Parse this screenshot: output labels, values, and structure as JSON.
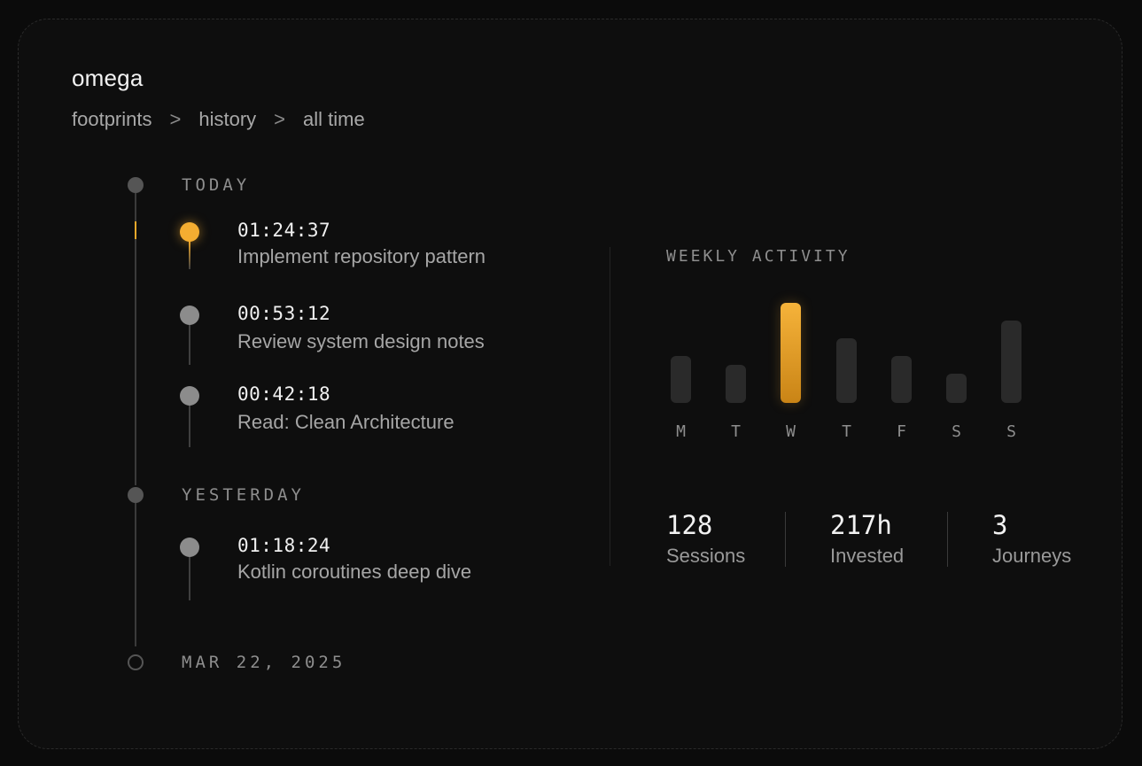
{
  "app": {
    "title": "omega"
  },
  "breadcrumb": {
    "items": [
      "footprints",
      "history",
      "all time"
    ],
    "separator": ">"
  },
  "timeline": {
    "groups": [
      {
        "label": "TODAY",
        "entries": [
          {
            "time": "01:24:37",
            "title": "Implement repository pattern",
            "active": true
          },
          {
            "time": "00:53:12",
            "title": "Review system design notes",
            "active": false
          },
          {
            "time": "00:42:18",
            "title": "Read: Clean Architecture",
            "active": false
          }
        ]
      },
      {
        "label": "YESTERDAY",
        "entries": [
          {
            "time": "01:18:24",
            "title": "Kotlin coroutines deep dive",
            "active": false
          }
        ]
      },
      {
        "label": "MAR 22, 2025",
        "entries": []
      }
    ]
  },
  "weekly_activity": {
    "title": "WEEKLY ACTIVITY",
    "days": [
      "M",
      "T",
      "W",
      "T",
      "F",
      "S",
      "S"
    ],
    "values": [
      0.47,
      0.38,
      1.0,
      0.65,
      0.47,
      0.29,
      0.82
    ],
    "highlight_index": 2,
    "accent_color": "#f4ad31"
  },
  "stats": [
    {
      "value": "128",
      "label": "Sessions"
    },
    {
      "value": "217h",
      "label": "Invested"
    },
    {
      "value": "3",
      "label": "Journeys"
    }
  ]
}
